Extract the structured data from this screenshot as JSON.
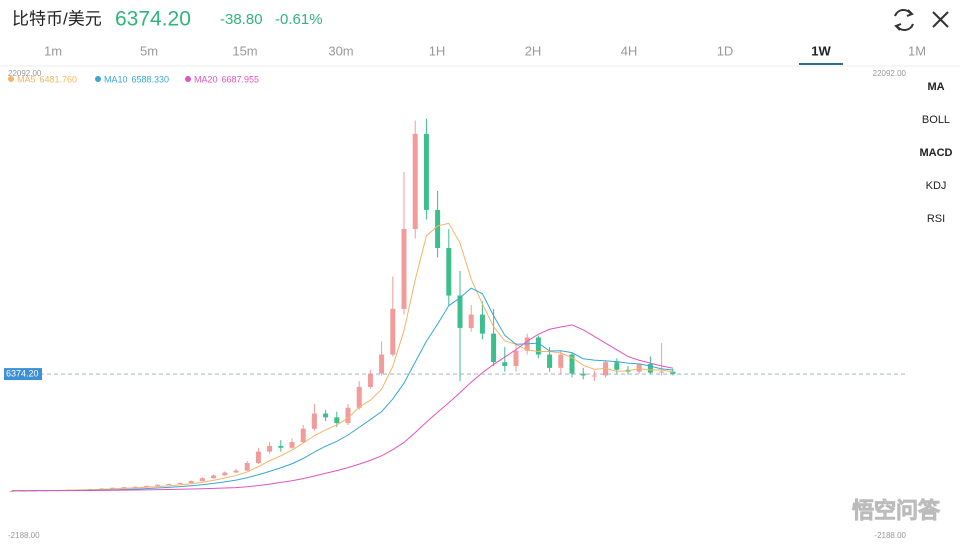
{
  "header": {
    "pair": "比特币/美元",
    "price": "6374.20",
    "change": "-38.80",
    "change_pct": "-0.61%"
  },
  "tabs": [
    "1m",
    "5m",
    "15m",
    "30m",
    "1H",
    "2H",
    "4H",
    "1D",
    "1W",
    "1M"
  ],
  "active_tab": 8,
  "indicators": [
    "MA",
    "BOLL",
    "MACD",
    "KDJ",
    "RSI"
  ],
  "watermark": "悟空问答",
  "chart_data": {
    "type": "candlestick",
    "ylim": [
      -2188,
      22092
    ],
    "yticks": [
      {
        "value": 22092,
        "label": "22092.00"
      },
      {
        "value": -2188,
        "label": "-2188.00"
      }
    ],
    "price_line": {
      "value": 6374.2,
      "label": "6374.20"
    },
    "up_color": "#f29b9b",
    "down_color": "#3cbf8c",
    "open": [
      235,
      240,
      250,
      255,
      265,
      275,
      290,
      310,
      330,
      360,
      400,
      430,
      450,
      500,
      560,
      600,
      650,
      750,
      900,
      1050,
      1200,
      1300,
      1700,
      2300,
      2600,
      2500,
      2800,
      3500,
      4300,
      4100,
      3800,
      4600,
      5700,
      6400,
      7400,
      9800,
      14000,
      19000,
      15000,
      13000,
      10500,
      8800,
      9500,
      8500,
      7000,
      6800,
      7600,
      8300,
      7400,
      6700,
      7400,
      6400,
      6300,
      6300,
      7000,
      6600,
      6500,
      6900,
      6450,
      6500
    ],
    "high": [
      255,
      260,
      265,
      275,
      285,
      300,
      320,
      340,
      370,
      410,
      440,
      470,
      520,
      580,
      620,
      680,
      780,
      950,
      1100,
      1250,
      1400,
      1800,
      2500,
      2800,
      2900,
      3000,
      3700,
      4800,
      4500,
      4400,
      4800,
      6000,
      6600,
      8100,
      11500,
      17000,
      19700,
      19800,
      16000,
      14000,
      11800,
      10000,
      10200,
      9800,
      7800,
      8000,
      8500,
      8400,
      7800,
      7600,
      7500,
      6700,
      6550,
      7100,
      7200,
      6800,
      6700,
      7300,
      8000,
      6650
    ],
    "low": [
      230,
      235,
      245,
      250,
      260,
      270,
      285,
      300,
      325,
      355,
      390,
      420,
      445,
      490,
      550,
      590,
      640,
      740,
      880,
      1030,
      1180,
      1280,
      1650,
      2200,
      2300,
      2450,
      2750,
      3400,
      3900,
      3600,
      3700,
      4500,
      5600,
      6300,
      7300,
      9500,
      13500,
      14500,
      12500,
      10000,
      6000,
      8600,
      8200,
      6800,
      6500,
      6500,
      7400,
      7200,
      6500,
      6400,
      6200,
      6100,
      6000,
      6200,
      6400,
      6350,
      6400,
      6350,
      6300,
      6300
    ],
    "close": [
      240,
      250,
      255,
      265,
      275,
      290,
      310,
      330,
      360,
      400,
      430,
      450,
      500,
      560,
      600,
      650,
      750,
      900,
      1050,
      1200,
      1300,
      1700,
      2300,
      2600,
      2500,
      2800,
      3500,
      4300,
      4100,
      3800,
      4600,
      5700,
      6400,
      7400,
      9800,
      14000,
      19000,
      15000,
      13000,
      10500,
      8800,
      9500,
      8500,
      7000,
      6800,
      7600,
      8300,
      7400,
      6700,
      7400,
      6400,
      6300,
      6300,
      7000,
      6600,
      6500,
      6900,
      6450,
      6500,
      6374.2
    ],
    "series": [
      {
        "name": "MA5",
        "last_label": "6481.760",
        "color": "#f5b466",
        "values": [
          240,
          245,
          248,
          255,
          256,
          267,
          279,
          294,
          313,
          338,
          366,
          394,
          424,
          458,
          498,
          552,
          612,
          692,
          790,
          910,
          1040,
          1230,
          1510,
          1820,
          2080,
          2380,
          2740,
          3140,
          3440,
          3700,
          4060,
          4640,
          5000,
          5580,
          6780,
          8660,
          11320,
          13640,
          14160,
          14300,
          13260,
          11360,
          10060,
          8860,
          8120,
          7940,
          7640,
          7560,
          7560,
          7480,
          7240,
          6840,
          6620,
          6680,
          6520,
          6540,
          6660,
          6590,
          6590,
          6481.76
        ]
      },
      {
        "name": "MA10",
        "last_label": "6588.330",
        "color": "#3aa7d6",
        "values": [
          240,
          243,
          246,
          250,
          254,
          259,
          265,
          272,
          280,
          290,
          309,
          330,
          355,
          385,
          418,
          459,
          503,
          560,
          629,
          709,
          799,
          925,
          1085,
          1262,
          1452,
          1662,
          1937,
          2277,
          2582,
          2842,
          3172,
          3572,
          3982,
          4402,
          5070,
          5900,
          7000,
          8100,
          9000,
          9970,
          10380,
          10890,
          10600,
          9440,
          8410,
          7940,
          7960,
          8000,
          7590,
          7600,
          7500,
          7180,
          7110,
          7070,
          7030,
          6950,
          6910,
          6790,
          6650,
          6588.33
        ]
      },
      {
        "name": "MA20",
        "last_label": "6687.955",
        "color": "#e055c0",
        "values": [
          240,
          242,
          244,
          246,
          248,
          251,
          255,
          259,
          263,
          268,
          275,
          282,
          290,
          300,
          310,
          321,
          334,
          349,
          366,
          385,
          410,
          455,
          515,
          590,
          680,
          770,
          880,
          1020,
          1160,
          1300,
          1460,
          1640,
          1840,
          2080,
          2400,
          2780,
          3300,
          3850,
          4370,
          4870,
          5400,
          5950,
          6450,
          6880,
          7270,
          7660,
          8100,
          8470,
          8730,
          8850,
          8960,
          8700,
          8350,
          8000,
          7650,
          7300,
          7100,
          6950,
          6800,
          6687.955
        ]
      }
    ]
  }
}
